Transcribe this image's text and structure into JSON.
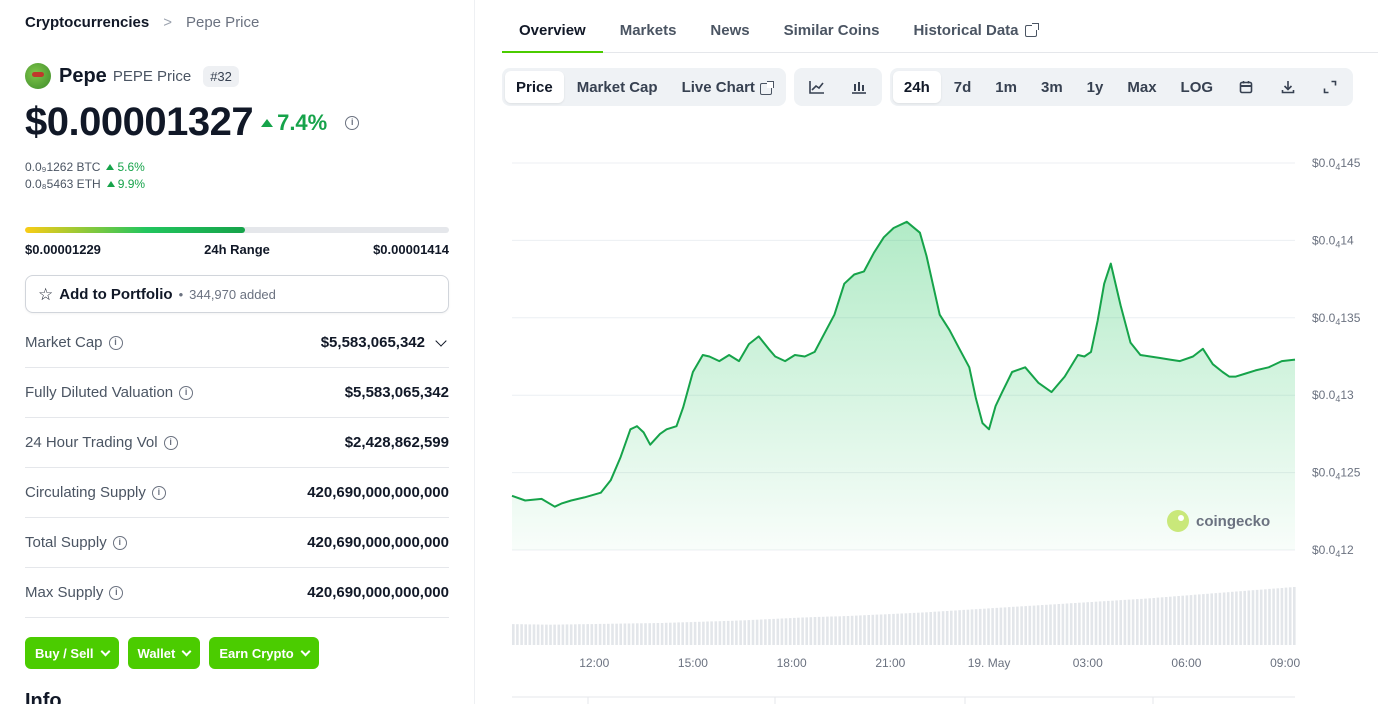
{
  "breadcrumb": {
    "root": "Cryptocurrencies",
    "separator": ">",
    "current": "Pepe Price"
  },
  "coin": {
    "name": "Pepe",
    "subtitle": "PEPE Price",
    "rank": "#32",
    "price": "$0.00001327",
    "change_24h": "7.4%",
    "btc_price": "0.0₉1262 BTC",
    "btc_change": "5.6%",
    "eth_price": "0.0₈5463 ETH",
    "eth_change": "9.9%"
  },
  "range": {
    "low": "$0.00001229",
    "label": "24h Range",
    "high": "$0.00001414",
    "position": 0.52
  },
  "portfolio": {
    "label": "Add to Portfolio",
    "bullet": "•",
    "count": "344,970 added"
  },
  "stats": [
    {
      "label": "Market Cap",
      "value": "$5,583,065,342"
    },
    {
      "label": "Fully Diluted Valuation",
      "value": "$5,583,065,342"
    },
    {
      "label": "24 Hour Trading Vol",
      "value": "$2,428,862,599"
    },
    {
      "label": "Circulating Supply",
      "value": "420,690,000,000,000"
    },
    {
      "label": "Total Supply",
      "value": "420,690,000,000,000"
    },
    {
      "label": "Max Supply",
      "value": "420,690,000,000,000"
    }
  ],
  "actions": [
    "Buy / Sell",
    "Wallet",
    "Earn Crypto"
  ],
  "info_heading": "Info",
  "tabs": [
    "Overview",
    "Markets",
    "News",
    "Similar Coins",
    "Historical Data"
  ],
  "chart_controls": {
    "views": [
      "Price",
      "Market Cap",
      "Live Chart"
    ],
    "ranges": [
      "24h",
      "7d",
      "1m",
      "3m",
      "1y",
      "Max",
      "LOG"
    ]
  },
  "colors": {
    "accent": "#4bcc00",
    "up": "#16a34a",
    "line": "#16a34a"
  },
  "chart_data": {
    "type": "area",
    "title": "",
    "watermark": "coingecko",
    "x_ticks": [
      "12:00",
      "15:00",
      "18:00",
      "21:00",
      "19. May",
      "03:00",
      "06:00",
      "09:00"
    ],
    "x_tick_hours": [
      2.5,
      5.5,
      8.5,
      11.5,
      14.5,
      17.5,
      20.5,
      23.5
    ],
    "y_ticks": [
      {
        "value": 1.45e-05,
        "base": "$0.0",
        "sub": "4",
        "digits": "145"
      },
      {
        "value": 1.4e-05,
        "base": "$0.0",
        "sub": "4",
        "digits": "14"
      },
      {
        "value": 1.35e-05,
        "base": "$0.0",
        "sub": "4",
        "digits": "135"
      },
      {
        "value": 1.3e-05,
        "base": "$0.0",
        "sub": "4",
        "digits": "13"
      },
      {
        "value": 1.25e-05,
        "base": "$0.0",
        "sub": "4",
        "digits": "125"
      },
      {
        "value": 1.2e-05,
        "base": "$0.0",
        "sub": "4",
        "digits": "12"
      }
    ],
    "ylim": [
      1.2e-05,
      1.45e-05
    ],
    "grid": true,
    "price_series": {
      "name": "Price",
      "hours": [
        0,
        0.4,
        0.9,
        1.3,
        1.5,
        1.8,
        2.2,
        2.7,
        3.0,
        3.3,
        3.6,
        3.8,
        4.0,
        4.2,
        4.5,
        4.7,
        5.0,
        5.2,
        5.5,
        5.8,
        6.0,
        6.3,
        6.6,
        6.9,
        7.2,
        7.5,
        7.8,
        8.0,
        8.3,
        8.6,
        8.9,
        9.2,
        9.5,
        9.8,
        10.1,
        10.4,
        10.7,
        11.0,
        11.3,
        11.6,
        12.0,
        12.4,
        12.6,
        13.0,
        13.3,
        13.6,
        13.9,
        14.1,
        14.3,
        14.5,
        14.7,
        14.9,
        15.2,
        15.6,
        16.0,
        16.4,
        16.8,
        17.2,
        17.4,
        17.6,
        17.8,
        18.0,
        18.2,
        18.5,
        18.8,
        19.1,
        19.4,
        19.7,
        20.0,
        20.3,
        20.7,
        21.0,
        21.3,
        21.6,
        21.8,
        22.0,
        22.3,
        22.6,
        23.0,
        23.4,
        23.8
      ],
      "values": [
        1.235e-05,
        1.232e-05,
        1.233e-05,
        1.228e-05,
        1.23e-05,
        1.232e-05,
        1.234e-05,
        1.237e-05,
        1.245e-05,
        1.26e-05,
        1.278e-05,
        1.28e-05,
        1.276e-05,
        1.268e-05,
        1.275e-05,
        1.278e-05,
        1.28e-05,
        1.292e-05,
        1.315e-05,
        1.326e-05,
        1.325e-05,
        1.322e-05,
        1.326e-05,
        1.322e-05,
        1.333e-05,
        1.338e-05,
        1.33e-05,
        1.325e-05,
        1.322e-05,
        1.326e-05,
        1.325e-05,
        1.328e-05,
        1.34e-05,
        1.352e-05,
        1.372e-05,
        1.378e-05,
        1.38e-05,
        1.392e-05,
        1.402e-05,
        1.408e-05,
        1.412e-05,
        1.405e-05,
        1.39e-05,
        1.352e-05,
        1.342e-05,
        1.33e-05,
        1.318e-05,
        1.298e-05,
        1.282e-05,
        1.278e-05,
        1.293e-05,
        1.302e-05,
        1.315e-05,
        1.318e-05,
        1.308e-05,
        1.302e-05,
        1.312e-05,
        1.326e-05,
        1.325e-05,
        1.328e-05,
        1.348e-05,
        1.372e-05,
        1.385e-05,
        1.358e-05,
        1.334e-05,
        1.326e-05,
        1.325e-05,
        1.324e-05,
        1.323e-05,
        1.322e-05,
        1.325e-05,
        1.33e-05,
        1.32e-05,
        1.315e-05,
        1.312e-05,
        1.312e-05,
        1.314e-05,
        1.316e-05,
        1.318e-05,
        1.322e-05,
        1.323e-05
      ]
    },
    "volume_series": {
      "name": "Volume",
      "relative_levels": [
        0.36,
        0.35,
        0.36,
        0.37,
        0.38,
        0.4,
        0.42,
        0.45,
        0.48,
        0.5,
        0.53,
        0.56,
        0.6,
        0.64,
        0.68,
        0.72,
        0.76,
        0.8,
        0.85,
        0.9,
        0.95,
        1.0
      ]
    }
  }
}
